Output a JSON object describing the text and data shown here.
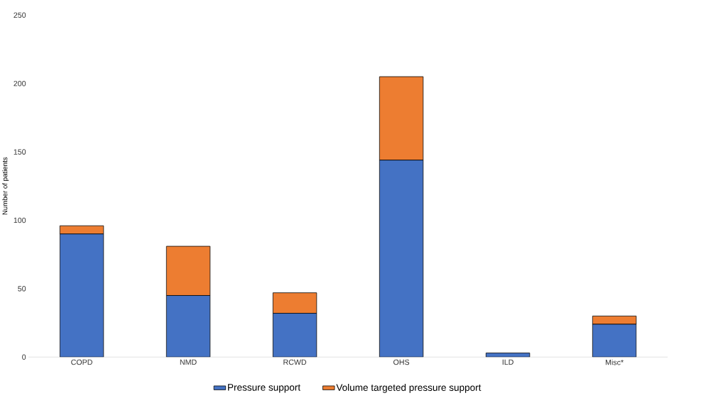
{
  "chart_data": {
    "type": "bar",
    "stacked": true,
    "ylabel": "Number of patients",
    "categories": [
      "COPD",
      "NMD",
      "RCWD",
      "OHS",
      "ILD",
      "Misc*"
    ],
    "series": [
      {
        "name": "Pressure support",
        "color": "#4472c4",
        "values": [
          90,
          45,
          32,
          144,
          3,
          24
        ]
      },
      {
        "name": "Volume targeted pressure support",
        "color": "#ed7d31",
        "values": [
          6,
          36,
          15,
          61,
          0,
          6
        ]
      }
    ],
    "ylim": [
      0,
      250
    ],
    "yticks": [
      0,
      50,
      100,
      150,
      200,
      250
    ],
    "grid": false,
    "legend": "bottom"
  }
}
